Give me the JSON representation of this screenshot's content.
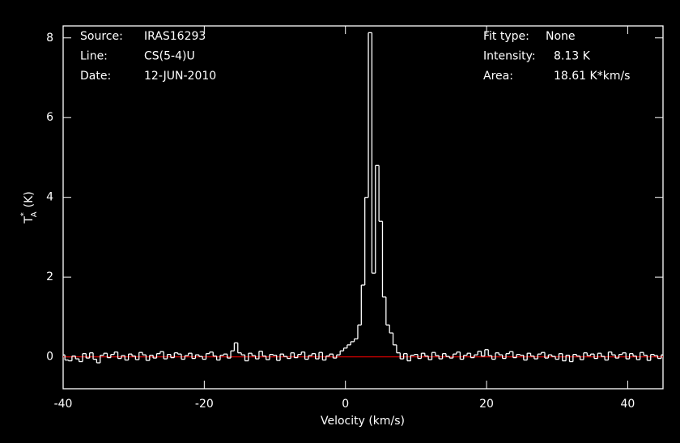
{
  "chart_data": {
    "type": "step",
    "xlabel": "Velocity (km/s)",
    "ylabel": {
      "base": "T",
      "sup": "*",
      "sub": "A",
      "unit": "(K)"
    },
    "annotations_left": [
      [
        "Source:",
        "IRAS16293"
      ],
      [
        "Line:",
        "CS(5-4)U"
      ],
      [
        "Date:",
        "12-JUN-2010"
      ]
    ],
    "annotations_right": [
      [
        "Fit type:",
        "None"
      ],
      [
        "Intensity:",
        "8.13 K"
      ],
      [
        "Area:",
        "18.61 K*km/s"
      ]
    ],
    "xlim": [
      -40,
      45
    ],
    "ylim": [
      -0.8,
      8.3
    ],
    "xticks": [
      -40,
      -20,
      0,
      20,
      40
    ],
    "yticks": [
      0,
      2,
      4,
      6,
      8
    ],
    "baseline": 0,
    "baseline_color": "#d00000",
    "color": "#ffffff",
    "x": [
      -40,
      -39.5,
      -39,
      -38.5,
      -38,
      -37.5,
      -37,
      -36.5,
      -36,
      -35.5,
      -35,
      -34.5,
      -34,
      -33.5,
      -33,
      -32.5,
      -32,
      -31.5,
      -31,
      -30.5,
      -30,
      -29.5,
      -29,
      -28.5,
      -28,
      -27.5,
      -27,
      -26.5,
      -26,
      -25.5,
      -25,
      -24.5,
      -24,
      -23.5,
      -23,
      -22.5,
      -22,
      -21.5,
      -21,
      -20.5,
      -20,
      -19.5,
      -19,
      -18.5,
      -18,
      -17.5,
      -17,
      -16.5,
      -16,
      -15.5,
      -15,
      -14.5,
      -14,
      -13.5,
      -13,
      -12.5,
      -12,
      -11.5,
      -11,
      -10.5,
      -10,
      -9.5,
      -9,
      -8.5,
      -8,
      -7.5,
      -7,
      -6.5,
      -6,
      -5.5,
      -5,
      -4.5,
      -4,
      -3.5,
      -3,
      -2.5,
      -2,
      -1.5,
      -1,
      -0.5,
      0,
      0.5,
      1,
      1.5,
      2,
      2.5,
      3,
      3.5,
      4,
      4.5,
      5,
      5.5,
      6,
      6.5,
      7,
      7.5,
      8,
      8.5,
      9,
      9.5,
      10,
      10.5,
      11,
      11.5,
      12,
      12.5,
      13,
      13.5,
      14,
      14.5,
      15,
      15.5,
      16,
      16.5,
      17,
      17.5,
      18,
      18.5,
      19,
      19.5,
      20,
      20.5,
      21,
      21.5,
      22,
      22.5,
      23,
      23.5,
      24,
      24.5,
      25,
      25.5,
      26,
      26.5,
      27,
      27.5,
      28,
      28.5,
      29,
      29.5,
      30,
      30.5,
      31,
      31.5,
      32,
      32.5,
      33,
      33.5,
      34,
      34.5,
      35,
      35.5,
      36,
      36.5,
      37,
      37.5,
      38,
      38.5,
      39,
      39.5,
      40,
      40.5,
      41,
      41.5,
      42,
      42.5,
      43,
      43.5,
      44,
      44.5,
      45
    ],
    "values": [
      0.05,
      -0.08,
      -0.1,
      0.02,
      -0.05,
      -0.12,
      0.08,
      -0.03,
      0.1,
      -0.06,
      -0.15,
      0.04,
      0.09,
      -0.02,
      0.06,
      0.12,
      -0.04,
      0.03,
      -0.08,
      0.07,
      0.02,
      -0.07,
      0.11,
      0.05,
      -0.09,
      0.04,
      -0.03,
      0.08,
      0.13,
      -0.05,
      0.06,
      -0.02,
      0.1,
      0.07,
      -0.06,
      0.03,
      0.09,
      -0.04,
      0.05,
      0.01,
      -0.06,
      0.08,
      0.12,
      0.02,
      -0.08,
      0.04,
      0.07,
      -0.03,
      0.15,
      0.35,
      0.1,
      0.05,
      -0.1,
      0.09,
      0.03,
      -0.05,
      0.14,
      0.02,
      -0.07,
      0.06,
      0.04,
      -0.09,
      0.07,
      0.01,
      -0.04,
      0.1,
      -0.02,
      0.06,
      0.12,
      -0.06,
      0.03,
      0.08,
      -0.05,
      0.11,
      -0.08,
      0.02,
      0.07,
      -0.03,
      0.05,
      0.15,
      0.22,
      0.3,
      0.38,
      0.45,
      0.8,
      1.8,
      4.0,
      8.13,
      2.1,
      4.8,
      3.4,
      1.5,
      0.8,
      0.6,
      0.3,
      0.1,
      -0.05,
      0.08,
      -0.1,
      0.04,
      0.06,
      -0.04,
      0.09,
      0.02,
      -0.07,
      0.11,
      0.03,
      -0.05,
      0.08,
      0.01,
      -0.03,
      0.07,
      0.12,
      -0.06,
      0.04,
      0.09,
      -0.02,
      0.05,
      0.14,
      0.02,
      0.18,
      0.03,
      -0.06,
      0.1,
      0.05,
      -0.04,
      0.08,
      0.13,
      -0.02,
      0.06,
      0.04,
      -0.08,
      0.09,
      0.02,
      -0.05,
      0.07,
      0.11,
      -0.03,
      0.05,
      0.01,
      -0.06,
      0.08,
      -0.1,
      0.04,
      -0.12,
      0.06,
      0.02,
      -0.07,
      0.1,
      0.03,
      0.07,
      -0.04,
      0.09,
      0.01,
      -0.08,
      0.12,
      0.05,
      -0.03,
      0.06,
      0.1,
      -0.05,
      0.08,
      0.02,
      -0.07,
      0.11,
      0.04,
      -0.09,
      0.06,
      0.03,
      -0.04,
      0.05
    ]
  }
}
